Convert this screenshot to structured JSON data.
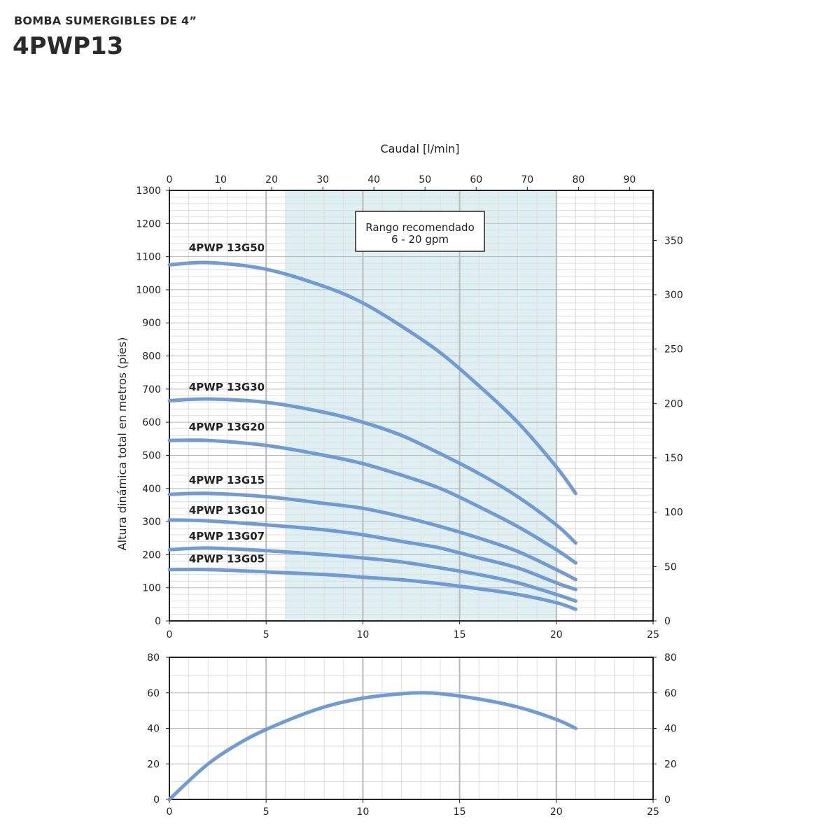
{
  "header": {
    "subtitle": "BOMBA SUMERGIBLES DE 4”",
    "title": "4PWP13"
  },
  "colors": {
    "curve": "#6f9bd6",
    "recommended_band": "#dff0f3",
    "grid_major": "#b9b9b9",
    "grid_minor": "#dedede",
    "frame": "#222222"
  },
  "chart_data": [
    {
      "type": "line",
      "title": "",
      "top_axis_label": "Caudal [l/min]",
      "ylabel": "Altura dinámica total en metros (pies)",
      "xlim": [
        0,
        25
      ],
      "xticks": [
        0,
        5,
        10,
        15,
        20,
        25
      ],
      "top_xlim": [
        0,
        94.6
      ],
      "top_xticks": [
        0,
        10,
        20,
        30,
        40,
        50,
        60,
        70,
        80,
        90
      ],
      "ylim": [
        0,
        1300
      ],
      "yticks": [
        0,
        100,
        200,
        300,
        400,
        500,
        600,
        700,
        800,
        900,
        1000,
        1100,
        1200,
        1300
      ],
      "right_ylim": [
        0,
        396
      ],
      "right_yticks": [
        0,
        50,
        100,
        150,
        200,
        250,
        300,
        350
      ],
      "grid": true,
      "recommended_range": {
        "x": [
          6,
          20
        ],
        "label_lines": [
          "Rango recomendado",
          "6 - 20 gpm"
        ]
      },
      "series": [
        {
          "name": "4PWP 13G50",
          "x": [
            0,
            2,
            5,
            8,
            10,
            12,
            14,
            16,
            18,
            20,
            21
          ],
          "y": [
            1075,
            1082,
            1062,
            1010,
            960,
            890,
            810,
            710,
            600,
            465,
            385
          ]
        },
        {
          "name": "4PWP 13G30",
          "x": [
            0,
            2,
            5,
            8,
            10,
            12,
            14,
            16,
            18,
            20,
            21
          ],
          "y": [
            665,
            670,
            660,
            630,
            600,
            560,
            505,
            445,
            375,
            290,
            235
          ]
        },
        {
          "name": "4PWP 13G20",
          "x": [
            0,
            2,
            5,
            8,
            10,
            12,
            14,
            16,
            18,
            20,
            21
          ],
          "y": [
            545,
            545,
            530,
            500,
            475,
            440,
            400,
            345,
            285,
            215,
            175
          ]
        },
        {
          "name": "4PWP 13G15",
          "x": [
            0,
            2,
            5,
            8,
            10,
            12,
            14,
            16,
            18,
            20,
            21
          ],
          "y": [
            382,
            385,
            375,
            355,
            340,
            315,
            285,
            250,
            210,
            155,
            125
          ]
        },
        {
          "name": "4PWP 13G10",
          "x": [
            0,
            2,
            5,
            8,
            10,
            12,
            14,
            16,
            18,
            20,
            21
          ],
          "y": [
            305,
            302,
            290,
            275,
            260,
            240,
            220,
            190,
            160,
            115,
            95
          ]
        },
        {
          "name": "4PWP 13G07",
          "x": [
            0,
            2,
            5,
            8,
            10,
            12,
            14,
            16,
            18,
            20,
            21
          ],
          "y": [
            215,
            220,
            212,
            200,
            190,
            178,
            160,
            140,
            115,
            80,
            60
          ]
        },
        {
          "name": "4PWP 13G05",
          "x": [
            0,
            2,
            5,
            8,
            10,
            12,
            14,
            16,
            18,
            20,
            21
          ],
          "y": [
            155,
            155,
            148,
            140,
            132,
            124,
            112,
            97,
            80,
            55,
            35
          ]
        }
      ]
    },
    {
      "type": "line",
      "title": "",
      "xlim": [
        0,
        25
      ],
      "xticks": [
        0,
        5,
        10,
        15,
        20,
        25
      ],
      "ylim": [
        0,
        80
      ],
      "yticks": [
        0,
        20,
        40,
        60,
        80
      ],
      "right_yticks": [
        0,
        20,
        40,
        60,
        80
      ],
      "grid": true,
      "series": [
        {
          "x": [
            0,
            2,
            4,
            6,
            8,
            10,
            12,
            13,
            14,
            16,
            18,
            20,
            21
          ],
          "y": [
            0,
            20,
            34,
            44,
            52,
            57,
            59.5,
            60,
            59.5,
            56.5,
            52,
            45,
            40
          ]
        }
      ]
    }
  ]
}
